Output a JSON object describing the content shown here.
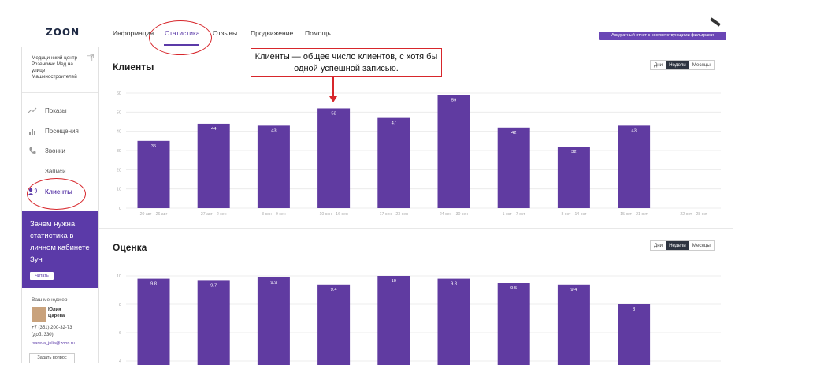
{
  "header": {
    "logo": "ZOON",
    "nav": [
      {
        "label": "Информация"
      },
      {
        "label": "Статистика"
      },
      {
        "label": "Отзывы"
      },
      {
        "label": "Продвижение"
      },
      {
        "label": "Помощь"
      }
    ],
    "promo_button": "Аккуратный отчет с соответствующими фильтрами"
  },
  "sidebar": {
    "clinic": "Медицинский центр Розенкинс Мед на улице Машиностроителей",
    "items": [
      {
        "label": "Показы",
        "icon": "trend-icon"
      },
      {
        "label": "Посещения",
        "icon": "bar-chart-icon"
      },
      {
        "label": "Звонки",
        "icon": "phone-icon"
      },
      {
        "label": "Записи",
        "icon": "none"
      },
      {
        "label": "Клиенты",
        "icon": "client-icon"
      }
    ],
    "promo": {
      "title": "Зачем нужна статистика в личном кабинете Зун",
      "read": "Читать"
    },
    "manager": {
      "label": "Ваш менеджер",
      "name_first": "Юлия",
      "name_last": "Царева",
      "phone": "+7 (351) 200-32-73",
      "ext": "(доб. 330)",
      "email": "tsareva_julia@zoon.ru",
      "ask": "Задать вопрос"
    }
  },
  "periods": [
    "Дни",
    "Недели",
    "Месяцы"
  ],
  "annotation": "Клиенты — общее число клиентов, с хотя бы одной успешной записью.",
  "chart_data": [
    {
      "type": "bar",
      "title": "Клиенты",
      "categories": [
        "20 авг—26 авг",
        "27 авг—2 сен",
        "3 сен—9 сен",
        "10 сен—16 сен",
        "17 сен—23 сен",
        "24 сен—30 сен",
        "1 окт—7 окт",
        "8 окт—14 окт",
        "15 окт—21 окт",
        "22 окт—28 окт"
      ],
      "values": [
        35,
        44,
        43,
        52,
        47,
        59,
        42,
        32,
        43,
        null
      ],
      "yticks": [
        0,
        10,
        20,
        30,
        40,
        50,
        60
      ],
      "ylim": [
        0,
        60
      ],
      "color": "#603ba1",
      "grid": true
    },
    {
      "type": "bar",
      "title": "Оценка",
      "categories": [
        "",
        "",
        "",
        "",
        "",
        "",
        "",
        "",
        "",
        ""
      ],
      "values": [
        9.8,
        9.7,
        9.9,
        9.4,
        10,
        9.8,
        9.5,
        9.4,
        8,
        null
      ],
      "labels": [
        "9.8",
        "9.7",
        "9.9",
        "9.4",
        "10",
        "9.8",
        "9.5",
        "9.4",
        "8",
        ""
      ],
      "yticks": [
        4,
        6,
        8,
        10
      ],
      "ylim": [
        2,
        10
      ],
      "color": "#603ba1",
      "grid": true
    }
  ]
}
